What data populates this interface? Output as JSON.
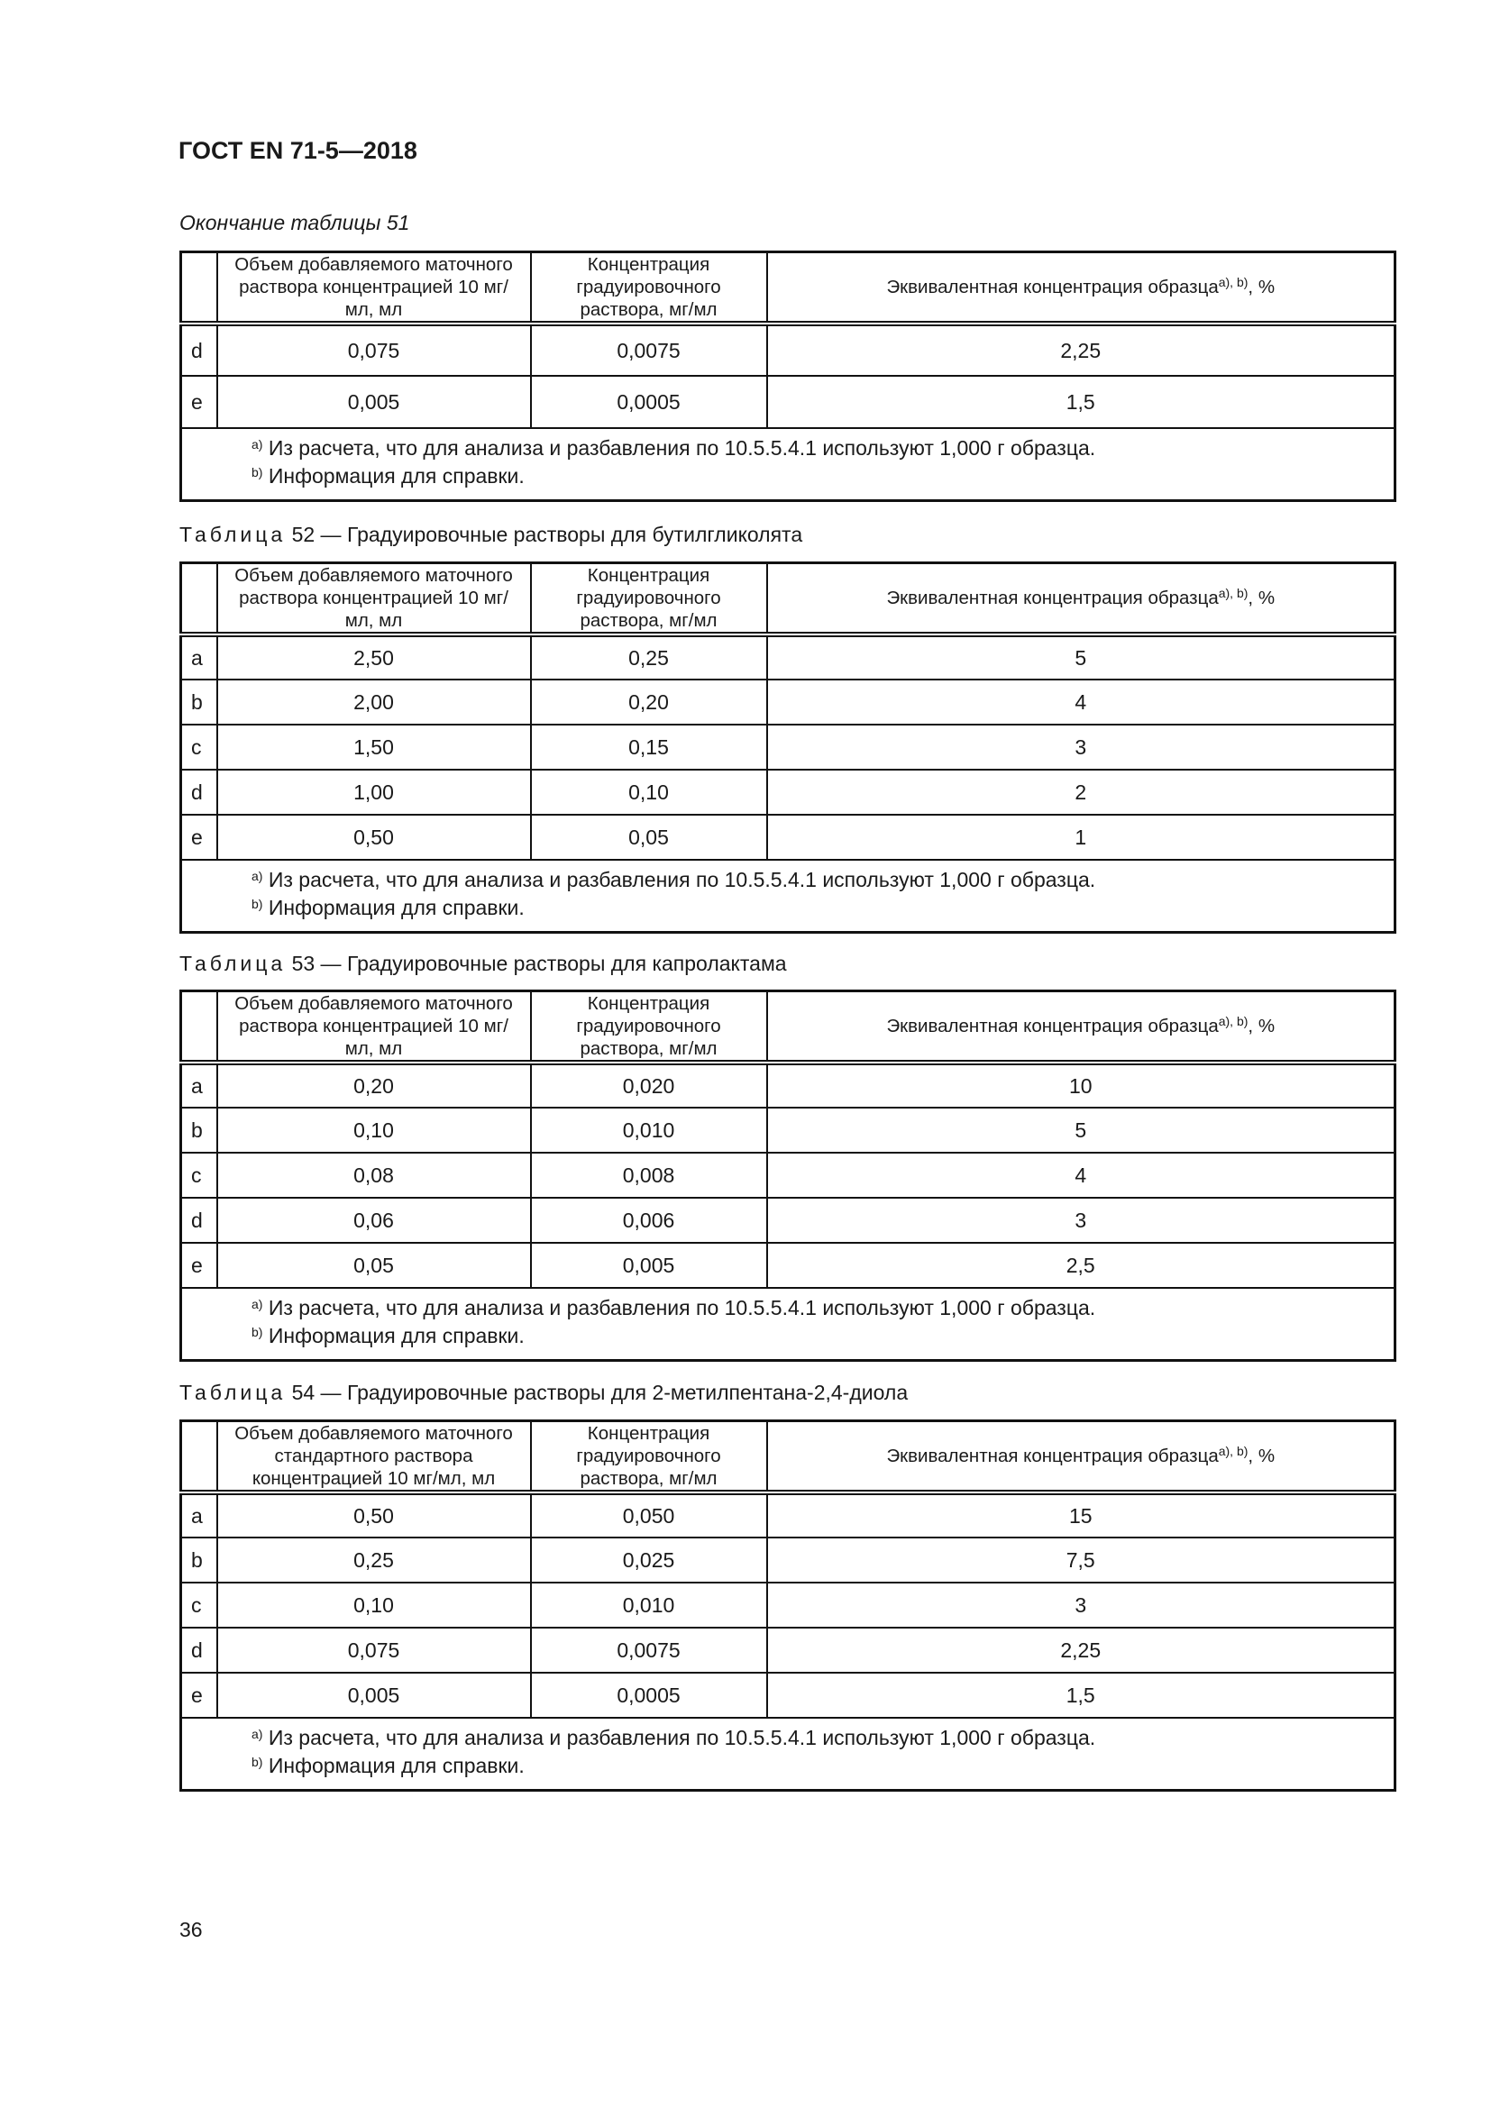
{
  "header": {
    "doc_id": "ГОСТ EN 71-5—2018"
  },
  "page_number": "36",
  "footnotes": {
    "a_mark": "a)",
    "a_text": "Из расчета, что для анализа и разбавления по 10.5.5.4.1 используют 1,000 г образца.",
    "b_mark": "b)",
    "b_text": "Информация для справки."
  },
  "tables": [
    {
      "caption_prefix": "",
      "caption": "Окончание таблицы 51",
      "headers": [
        "Объем добавляемого маточного раствора концентрацией 10 мг/мл, мл",
        "Концентрация градуировочного раствора, мг/мл",
        "Эквивалентная концентрация образца"
      ],
      "header_sup": "a), b)",
      "header_suffix": ", %",
      "rows": [
        [
          "d",
          "0,075",
          "0,0075",
          "2,25"
        ],
        [
          "e",
          "0,005",
          "0,0005",
          "1,5"
        ]
      ]
    },
    {
      "caption_prefix": "Таблица",
      "caption": "52 — Градуировочные растворы для бутилгликолята",
      "headers": [
        "Объем добавляемого маточного раствора концентрацией 10 мг/мл, мл",
        "Концентрация градуировочного раствора, мг/мл",
        "Эквивалентная концентрация образца"
      ],
      "header_sup": "a), b)",
      "header_suffix": ", %",
      "rows": [
        [
          "a",
          "2,50",
          "0,25",
          "5"
        ],
        [
          "b",
          "2,00",
          "0,20",
          "4"
        ],
        [
          "c",
          "1,50",
          "0,15",
          "3"
        ],
        [
          "d",
          "1,00",
          "0,10",
          "2"
        ],
        [
          "e",
          "0,50",
          "0,05",
          "1"
        ]
      ]
    },
    {
      "caption_prefix": "Таблица",
      "caption": "53 — Градуировочные растворы для капролактама",
      "headers": [
        "Объем добавляемого маточного раствора концентрацией 10 мг/мл, мл",
        "Концентрация градуировочного раствора, мг/мл",
        "Эквивалентная концентрация образца"
      ],
      "header_sup": "a), b)",
      "header_suffix": ", %",
      "rows": [
        [
          "a",
          "0,20",
          "0,020",
          "10"
        ],
        [
          "b",
          "0,10",
          "0,010",
          "5"
        ],
        [
          "c",
          "0,08",
          "0,008",
          "4"
        ],
        [
          "d",
          "0,06",
          "0,006",
          "3"
        ],
        [
          "e",
          "0,05",
          "0,005",
          "2,5"
        ]
      ]
    },
    {
      "caption_prefix": "Таблица",
      "caption": "54 — Градуировочные растворы для 2-метилпентана-2,4-диола",
      "headers": [
        "Объем добавляемого маточного стандартного раствора концентрацией 10 мг/мл, мл",
        "Концентрация градуировочного раствора, мг/мл",
        "Эквивалентная концентрация образца"
      ],
      "header_sup": "a), b)",
      "header_suffix": ", %",
      "rows": [
        [
          "a",
          "0,50",
          "0,050",
          "15"
        ],
        [
          "b",
          "0,25",
          "0,025",
          "7,5"
        ],
        [
          "c",
          "0,10",
          "0,010",
          "3"
        ],
        [
          "d",
          "0,075",
          "0,0075",
          "2,25"
        ],
        [
          "e",
          "0,005",
          "0,0005",
          "1,5"
        ]
      ]
    }
  ]
}
